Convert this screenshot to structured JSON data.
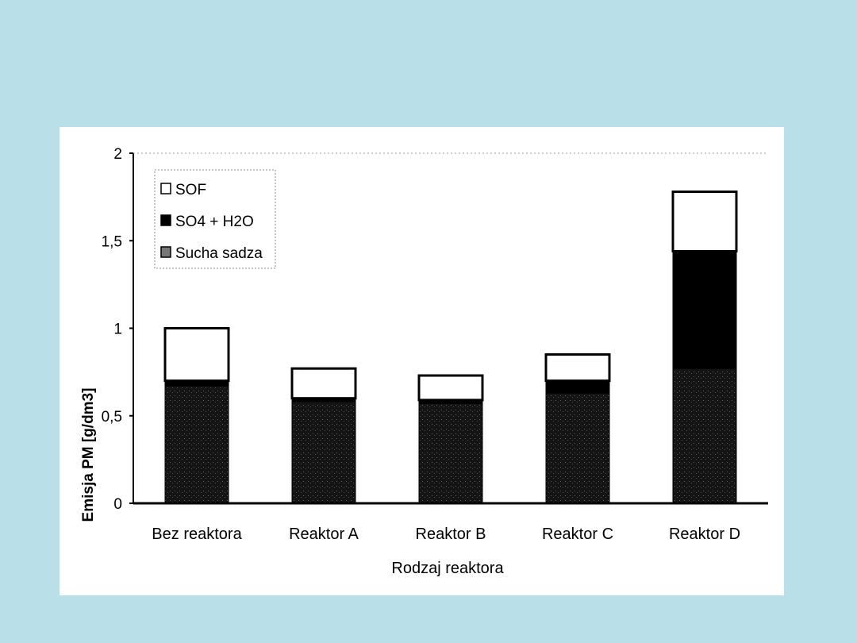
{
  "chart_data": {
    "type": "bar",
    "stacked": true,
    "title": "",
    "xlabel": "Rodzaj reaktora",
    "ylabel": "Emisja PM  [g/dm3]",
    "ylim": [
      0,
      2
    ],
    "yticks": [
      "0",
      "0,5",
      "1",
      "1,5",
      "2"
    ],
    "ytick_values": [
      0,
      0.5,
      1,
      1.5,
      2
    ],
    "categories": [
      "Bez reaktora",
      "Reaktor A",
      "Reaktor B",
      "Reaktor C",
      "Reaktor D"
    ],
    "series": [
      {
        "name": "Sucha sadza",
        "values": [
          0.67,
          0.58,
          0.57,
          0.63,
          0.77
        ],
        "color": "#1c1c1c"
      },
      {
        "name": "SO4 + H2O",
        "values": [
          0.03,
          0.02,
          0.02,
          0.07,
          0.67
        ],
        "color": "#000000"
      },
      {
        "name": "SOF",
        "values": [
          0.3,
          0.17,
          0.14,
          0.15,
          0.34
        ],
        "color": "#ffffff"
      }
    ],
    "legend": {
      "placement": "top-left",
      "order": [
        "SOF",
        "SO4 + H2O",
        "Sucha sadza"
      ]
    },
    "grid": false
  }
}
